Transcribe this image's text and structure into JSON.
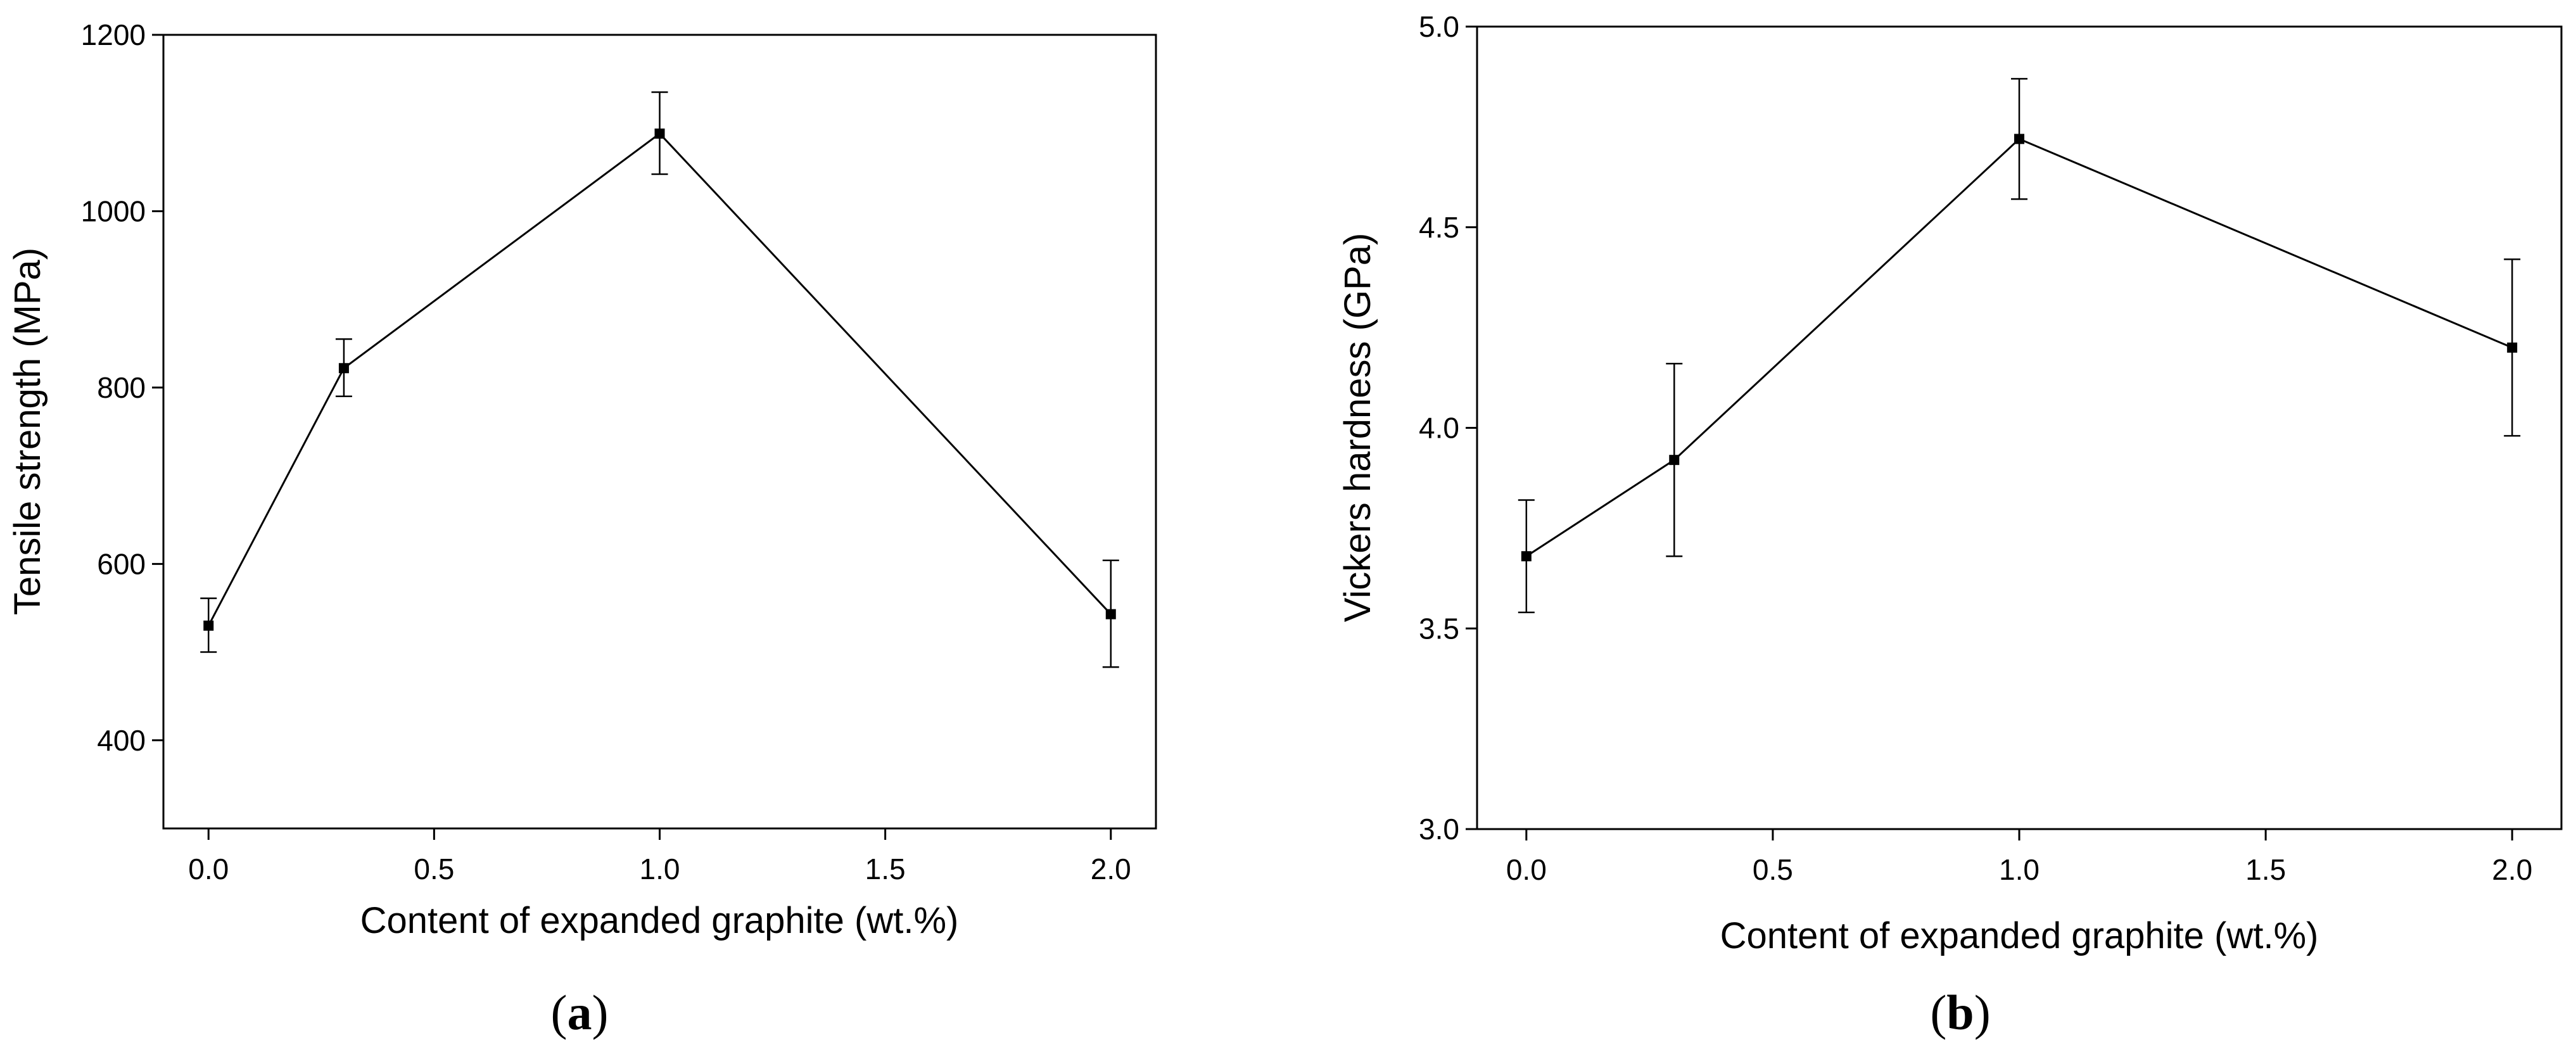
{
  "chart_data": [
    {
      "type": "line",
      "panel_label": {
        "open": "(",
        "letter": "a",
        "close": ")"
      },
      "xlabel": "Content of expanded graphite (wt.%)",
      "ylabel": "Tensile strength (MPa)",
      "xlim": [
        -0.1,
        2.1
      ],
      "ylim": [
        300,
        1200
      ],
      "xticks": [
        0.0,
        0.5,
        1.0,
        1.5,
        2.0
      ],
      "xtick_labels": [
        "0.0",
        "0.5",
        "1.0",
        "1.5",
        "2.0"
      ],
      "yticks": [
        400,
        600,
        800,
        1000,
        1200
      ],
      "ytick_labels": [
        "400",
        "600",
        "800",
        "1000",
        "1200"
      ],
      "grid": false,
      "series": [
        {
          "x": [
            0.0,
            0.3,
            1.0,
            2.0
          ],
          "y": [
            530,
            822,
            1088,
            543
          ],
          "err_low": [
            500,
            790,
            1042,
            483
          ],
          "err_high": [
            561,
            855,
            1135,
            604
          ]
        }
      ]
    },
    {
      "type": "line",
      "panel_label": {
        "open": "(",
        "letter": "b",
        "close": ")"
      },
      "xlabel": "Content of expanded graphite (wt.%)",
      "ylabel": "Vickers hardness (GPa)",
      "xlim": [
        -0.1,
        2.1
      ],
      "ylim": [
        3.0,
        5.0
      ],
      "xticks": [
        0.0,
        0.5,
        1.0,
        1.5,
        2.0
      ],
      "xtick_labels": [
        "0.0",
        "0.5",
        "1.0",
        "1.5",
        "2.0"
      ],
      "yticks": [
        3.0,
        3.5,
        4.0,
        4.5,
        5.0
      ],
      "ytick_labels": [
        "3.0",
        "3.5",
        "4.0",
        "4.5",
        "5.0"
      ],
      "grid": false,
      "series": [
        {
          "x": [
            0.0,
            0.3,
            1.0,
            2.0
          ],
          "y": [
            3.68,
            3.92,
            4.72,
            4.2
          ],
          "err_low": [
            3.54,
            3.68,
            4.57,
            3.98
          ],
          "err_high": [
            3.82,
            4.16,
            4.87,
            4.42
          ]
        }
      ]
    }
  ]
}
